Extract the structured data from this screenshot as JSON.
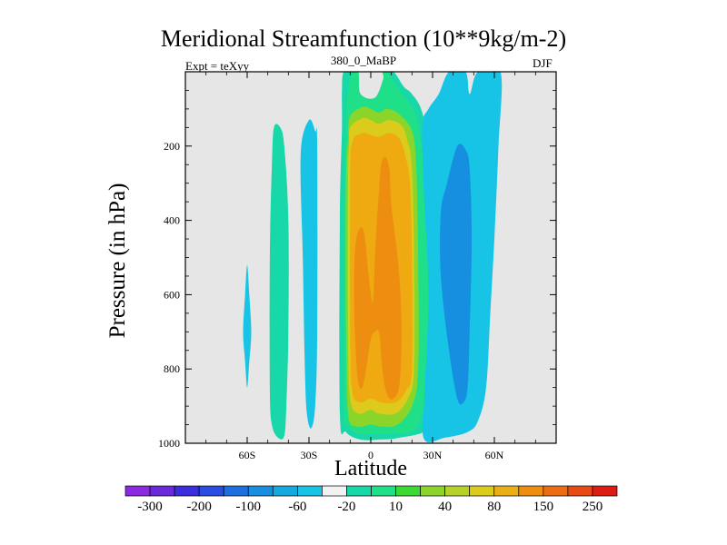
{
  "chart_data": {
    "type": "heatmap",
    "title": "Meridional Streamfunction (10**9kg/m-2)",
    "left_label": "Expt = teXyy",
    "center_label": "380_0_MaBP",
    "right_label": "DJF",
    "xlabel": "Latitude",
    "ylabel": "Pressure (in hPa)",
    "x_ticks": [
      "60S",
      "30S",
      "0",
      "30N",
      "60N"
    ],
    "x_tick_values": [
      -60,
      -30,
      0,
      30,
      60
    ],
    "xlim": [
      -90,
      90
    ],
    "y_ticks": [
      "200",
      "400",
      "600",
      "800",
      "1000"
    ],
    "y_tick_values": [
      200,
      400,
      600,
      800,
      1000
    ],
    "ylim": [
      0,
      1000
    ],
    "y_inverted": true,
    "colorbar": {
      "labels": [
        "-300",
        "-200",
        "-100",
        "-60",
        "-20",
        "10",
        "40",
        "80",
        "150",
        "250"
      ],
      "colors": [
        "#8A2BE2",
        "#6A2ADC",
        "#3A2EDC",
        "#2A4CE0",
        "#1E6EE0",
        "#178FE0",
        "#14AADF",
        "#17C4E6",
        "#F2F2F2",
        "#18D7A8",
        "#1FE089",
        "#3CD936",
        "#8BD52A",
        "#B8D12A",
        "#DCCB1D",
        "#E9AF14",
        "#EE8E10",
        "#EB6C12",
        "#E84A15",
        "#DD1C16"
      ]
    },
    "regions": [
      {
        "level": "-20",
        "color": "#17C4E6",
        "points": [
          [
            -58,
            700
          ],
          [
            -59,
            600
          ],
          [
            -60,
            520
          ],
          [
            -61,
            600
          ],
          [
            -62,
            700
          ],
          [
            -61,
            780
          ],
          [
            -60,
            850
          ],
          [
            -59,
            780
          ]
        ]
      },
      {
        "level": "10",
        "color": "#18D7A8",
        "points": [
          [
            -47,
            150
          ],
          [
            -44,
            150
          ],
          [
            -42,
            200
          ],
          [
            -40,
            400
          ],
          [
            -40,
            700
          ],
          [
            -41,
            900
          ],
          [
            -42,
            980
          ],
          [
            -45,
            985
          ],
          [
            -48,
            950
          ],
          [
            -49,
            850
          ],
          [
            -49,
            500
          ],
          [
            -48,
            250
          ]
        ]
      },
      {
        "level": "-20",
        "color": "#17C4E6",
        "points": [
          [
            -30,
            130
          ],
          [
            -27,
            160
          ],
          [
            -26,
            200
          ],
          [
            -26,
            700
          ],
          [
            -27,
            900
          ],
          [
            -29,
            960
          ],
          [
            -31,
            920
          ],
          [
            -32,
            800
          ],
          [
            -33,
            500
          ],
          [
            -34,
            220
          ]
        ]
      },
      {
        "level": "10",
        "color": "#18D7A8",
        "points": [
          [
            -13,
            0
          ],
          [
            -7,
            0
          ],
          [
            -5,
            60
          ],
          [
            2,
            70
          ],
          [
            6,
            20
          ],
          [
            6,
            0
          ],
          [
            11,
            0
          ],
          [
            16,
            40
          ],
          [
            20,
            60
          ],
          [
            25,
            110
          ],
          [
            30,
            250
          ],
          [
            30,
            400
          ],
          [
            33,
            700
          ],
          [
            31,
            870
          ],
          [
            28,
            960
          ],
          [
            14,
            985
          ],
          [
            4,
            990
          ],
          [
            -5,
            990
          ],
          [
            -12,
            970
          ],
          [
            -15,
            920
          ],
          [
            -15,
            400
          ],
          [
            -14,
            150
          ],
          [
            -14,
            50
          ]
        ]
      },
      {
        "level": "40",
        "color": "#1FE089",
        "points": [
          [
            -9,
            0
          ],
          [
            -6,
            0
          ],
          [
            -5,
            60
          ],
          [
            2,
            70
          ],
          [
            6,
            20
          ],
          [
            6,
            0
          ],
          [
            8,
            0
          ],
          [
            14,
            50
          ],
          [
            18,
            80
          ],
          [
            22,
            120
          ],
          [
            26,
            250
          ],
          [
            27,
            400
          ],
          [
            28,
            650
          ],
          [
            27,
            850
          ],
          [
            22,
            960
          ],
          [
            10,
            975
          ],
          [
            2,
            975
          ],
          [
            -6,
            975
          ],
          [
            -12,
            950
          ],
          [
            -13,
            900
          ],
          [
            -13,
            400
          ],
          [
            -12,
            150
          ],
          [
            -11,
            50
          ]
        ]
      },
      {
        "level": "80",
        "color": "#8BD52A",
        "points": [
          [
            -10,
            120
          ],
          [
            -4,
            95
          ],
          [
            0,
            100
          ],
          [
            4,
            110
          ],
          [
            8,
            100
          ],
          [
            14,
            115
          ],
          [
            20,
            160
          ],
          [
            22,
            250
          ],
          [
            23,
            500
          ],
          [
            23,
            800
          ],
          [
            20,
            900
          ],
          [
            13,
            950
          ],
          [
            5,
            955
          ],
          [
            0,
            950
          ],
          [
            -7,
            955
          ],
          [
            -11,
            920
          ],
          [
            -12,
            700
          ],
          [
            -12,
            300
          ],
          [
            -11,
            180
          ]
        ]
      },
      {
        "level": "150",
        "color": "#DCCB1D",
        "points": [
          [
            -10,
            150
          ],
          [
            -4,
            125
          ],
          [
            0,
            130
          ],
          [
            4,
            140
          ],
          [
            9,
            130
          ],
          [
            15,
            145
          ],
          [
            18,
            190
          ],
          [
            20,
            260
          ],
          [
            21,
            500
          ],
          [
            21,
            800
          ],
          [
            18,
            880
          ],
          [
            12,
            920
          ],
          [
            4,
            920
          ],
          [
            0,
            910
          ],
          [
            -6,
            920
          ],
          [
            -10,
            880
          ],
          [
            -11,
            700
          ],
          [
            -11,
            300
          ],
          [
            -10.5,
            200
          ]
        ]
      },
      {
        "level": "250",
        "color": "#EEAA10",
        "points": [
          [
            -9,
            190
          ],
          [
            -4,
            165
          ],
          [
            0,
            170
          ],
          [
            4,
            175
          ],
          [
            9,
            165
          ],
          [
            14,
            180
          ],
          [
            17,
            230
          ],
          [
            19,
            300
          ],
          [
            20,
            500
          ],
          [
            20,
            800
          ],
          [
            17,
            860
          ],
          [
            12,
            890
          ],
          [
            5,
            890
          ],
          [
            0,
            880
          ],
          [
            -5,
            890
          ],
          [
            -9,
            860
          ],
          [
            -10,
            700
          ],
          [
            -10,
            300
          ]
        ]
      },
      {
        "level": "300",
        "color": "#EE8E10",
        "points": [
          [
            -7,
            450
          ],
          [
            -5,
            420
          ],
          [
            -3,
            440
          ],
          [
            -1,
            550
          ],
          [
            1,
            620
          ],
          [
            2,
            500
          ],
          [
            3,
            400
          ],
          [
            4,
            320
          ],
          [
            5,
            250
          ],
          [
            7,
            230
          ],
          [
            9,
            260
          ],
          [
            10,
            360
          ],
          [
            12,
            450
          ],
          [
            14,
            560
          ],
          [
            15,
            700
          ],
          [
            14,
            840
          ],
          [
            11,
            880
          ],
          [
            8,
            870
          ],
          [
            6,
            820
          ],
          [
            5,
            760
          ],
          [
            4,
            700
          ],
          [
            2,
            700
          ],
          [
            0,
            720
          ],
          [
            -2,
            790
          ],
          [
            -4,
            850
          ],
          [
            -6,
            840
          ],
          [
            -7,
            780
          ],
          [
            -8,
            650
          ],
          [
            -8,
            520
          ]
        ]
      },
      {
        "level": "-20",
        "color": "#17C4E6",
        "points": [
          [
            38,
            0
          ],
          [
            46,
            0
          ],
          [
            48,
            60
          ],
          [
            52,
            0
          ],
          [
            63,
            0
          ],
          [
            62,
            200
          ],
          [
            60,
            450
          ],
          [
            58,
            650
          ],
          [
            56,
            850
          ],
          [
            52,
            940
          ],
          [
            47,
            970
          ],
          [
            36,
            985
          ],
          [
            26,
            990
          ],
          [
            26,
            880
          ],
          [
            28,
            600
          ],
          [
            26,
            350
          ],
          [
            25,
            150
          ],
          [
            28,
            100
          ],
          [
            33,
            60
          ]
        ]
      },
      {
        "level": "-60",
        "color": "#178FE0",
        "points": [
          [
            42,
            200
          ],
          [
            46,
            210
          ],
          [
            48,
            260
          ],
          [
            49,
            450
          ],
          [
            48,
            700
          ],
          [
            47,
            850
          ],
          [
            45,
            890
          ],
          [
            42,
            880
          ],
          [
            38,
            750
          ],
          [
            34,
            550
          ],
          [
            34,
            380
          ],
          [
            37,
            300
          ]
        ]
      }
    ]
  }
}
